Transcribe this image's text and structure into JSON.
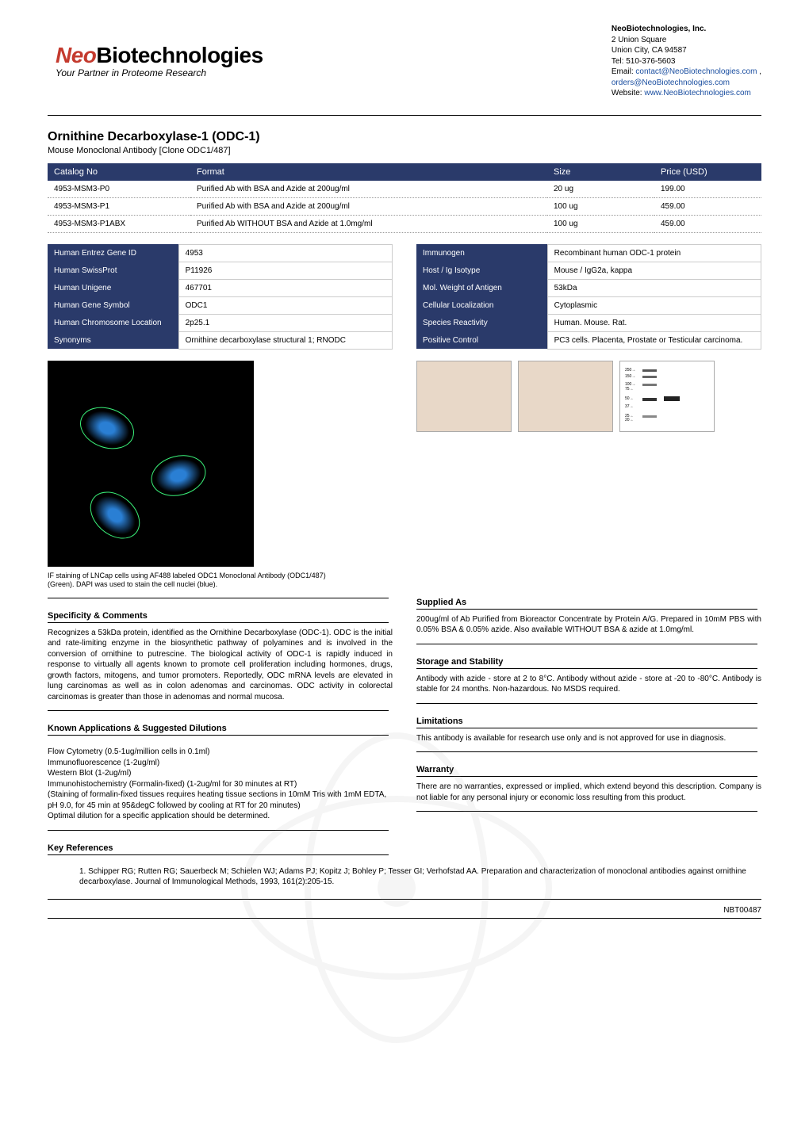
{
  "company": {
    "name": "NeoBiotechnologies, Inc.",
    "addr1": "2 Union Square",
    "addr2": "Union City, CA 94587",
    "tel_label": "Tel: ",
    "tel": "510-376-5603",
    "email_label": "Email: ",
    "email1": "contact@NeoBiotechnologies.com",
    "email_sep": " , ",
    "email2": "orders@NeoBiotechnologies.com",
    "web_label": "Website: ",
    "web": "www.NeoBiotechnologies.com"
  },
  "logo": {
    "main_prefix": "Neo",
    "main_rest": "Biotechnologies",
    "sub": "Your Partner in Proteome Research",
    "icon_color": "#c43a2e"
  },
  "product": {
    "title": "Ornithine Decarboxylase-1 (ODC-1)",
    "subtitle": "Mouse Monoclonal Antibody [Clone ODC1/487]"
  },
  "pricing": {
    "headers": {
      "cat": "Catalog No",
      "fmt": "Format",
      "size": "Size",
      "price": "Price (USD)"
    },
    "rows": [
      {
        "cat": "4953-MSM3-P0",
        "fmt": "Purified Ab with BSA and Azide at 200ug/ml",
        "size": "20 ug",
        "price": "199.00"
      },
      {
        "cat": "4953-MSM3-P1",
        "fmt": "Purified Ab with BSA and Azide at 200ug/ml",
        "size": "100 ug",
        "price": "459.00"
      },
      {
        "cat": "4953-MSM3-P1ABX",
        "fmt": "Purified Ab WITHOUT BSA and Azide at 1.0mg/ml",
        "size": "100 ug",
        "price": "459.00"
      }
    ]
  },
  "left_kv": [
    {
      "k": "Human Entrez Gene ID",
      "v": "4953"
    },
    {
      "k": "Human SwissProt",
      "v": "P11926"
    },
    {
      "k": "Human Unigene",
      "v": "467701"
    },
    {
      "k": "Human Gene Symbol",
      "v": "ODC1"
    },
    {
      "k": "Human Chromosome Location",
      "v": "2p25.1"
    },
    {
      "k": "Synonyms",
      "v": "Ornithine decarboxylase structural 1; RNODC"
    }
  ],
  "right_kv": [
    {
      "k": "Immunogen",
      "v": "Recombinant human ODC-1 protein"
    },
    {
      "k": "Host / Ig Isotype",
      "v": "Mouse / IgG2a, kappa"
    },
    {
      "k": "Mol. Weight of Antigen",
      "v": "53kDa"
    },
    {
      "k": "Cellular Localization",
      "v": "Cytoplasmic"
    },
    {
      "k": "Species Reactivity",
      "v": "Human. Mouse. Rat."
    },
    {
      "k": "Positive Control",
      "v": "PC3 cells. Placenta, Prostate or Testicular carcinoma."
    }
  ],
  "main_image_caption": "IF staining of LNCap cells using AF488 labeled ODC1 Monoclonal Antibody (ODC1/487) (Green). DAPI was used to stain the cell nuclei (blue).",
  "sections": {
    "specificity_h": "Specificity & Comments",
    "specificity": "Recognizes a 53kDa protein, identified as the Ornithine Decarboxylase (ODC-1). ODC is the initial and rate-limiting enzyme in the biosynthetic pathway of polyamines and is involved in the conversion of ornithine to putrescine. The biological activity of ODC-1 is rapidly induced in response to virtually all agents known to promote cell proliferation including hormones, drugs, growth factors, mitogens, and tumor promoters. Reportedly, ODC mRNA levels are elevated in lung carcinomas as well as in colon adenomas and carcinomas. ODC activity in colorectal carcinomas is greater than those in adenomas and normal mucosa.",
    "apps_h": "Known Applications & Suggested Dilutions",
    "apps": "Flow Cytometry (0.5-1ug/million cells in 0.1ml)\nImmunofluorescence (1-2ug/ml)\nWestern Blot (1-2ug/ml)\nImmunohistochemistry (Formalin-fixed) (1-2ug/ml for 30 minutes at RT)\n(Staining of formalin-fixed tissues requires heating tissue sections in 10mM Tris with 1mM EDTA, pH 9.0, for 45 min at 95&degC followed by cooling at RT for 20 minutes)\nOptimal dilution for a specific application should be determined.",
    "refs_h": "Key References",
    "ref1": "1. Schipper RG; Rutten RG; Sauerbeck M; Schielen WJ; Adams PJ; Kopitz J; Bohley P; Tesser GI; Verhofstad AA. Preparation and characterization of monoclonal antibodies against ornithine decarboxylase. Journal of Immunological Methods, 1993, 161(2):205-15.",
    "supplied_h": "Supplied As",
    "supplied": "200ug/ml of Ab Purified from Bioreactor Concentrate by Protein A/G. Prepared in 10mM PBS with 0.05% BSA & 0.05% azide. Also available WITHOUT BSA & azide at 1.0mg/ml.",
    "storage_h": "Storage and Stability",
    "storage": "Antibody with azide - store at 2 to 8°C. Antibody without azide - store at -20 to -80°C. Antibody is stable for 24 months. Non-hazardous. No MSDS required.",
    "limit_h": "Limitations",
    "limit": "This antibody is available for research use only and is not approved for use in diagnosis.",
    "warranty_h": "Warranty",
    "warranty": "There are no warranties, expressed or implied, which extend beyond this description. Company is not liable for any personal injury or economic loss resulting from this product."
  },
  "footer_code": "NBT00487",
  "colors": {
    "header_bg": "#2a3a6a",
    "link": "#1a4ea0"
  }
}
